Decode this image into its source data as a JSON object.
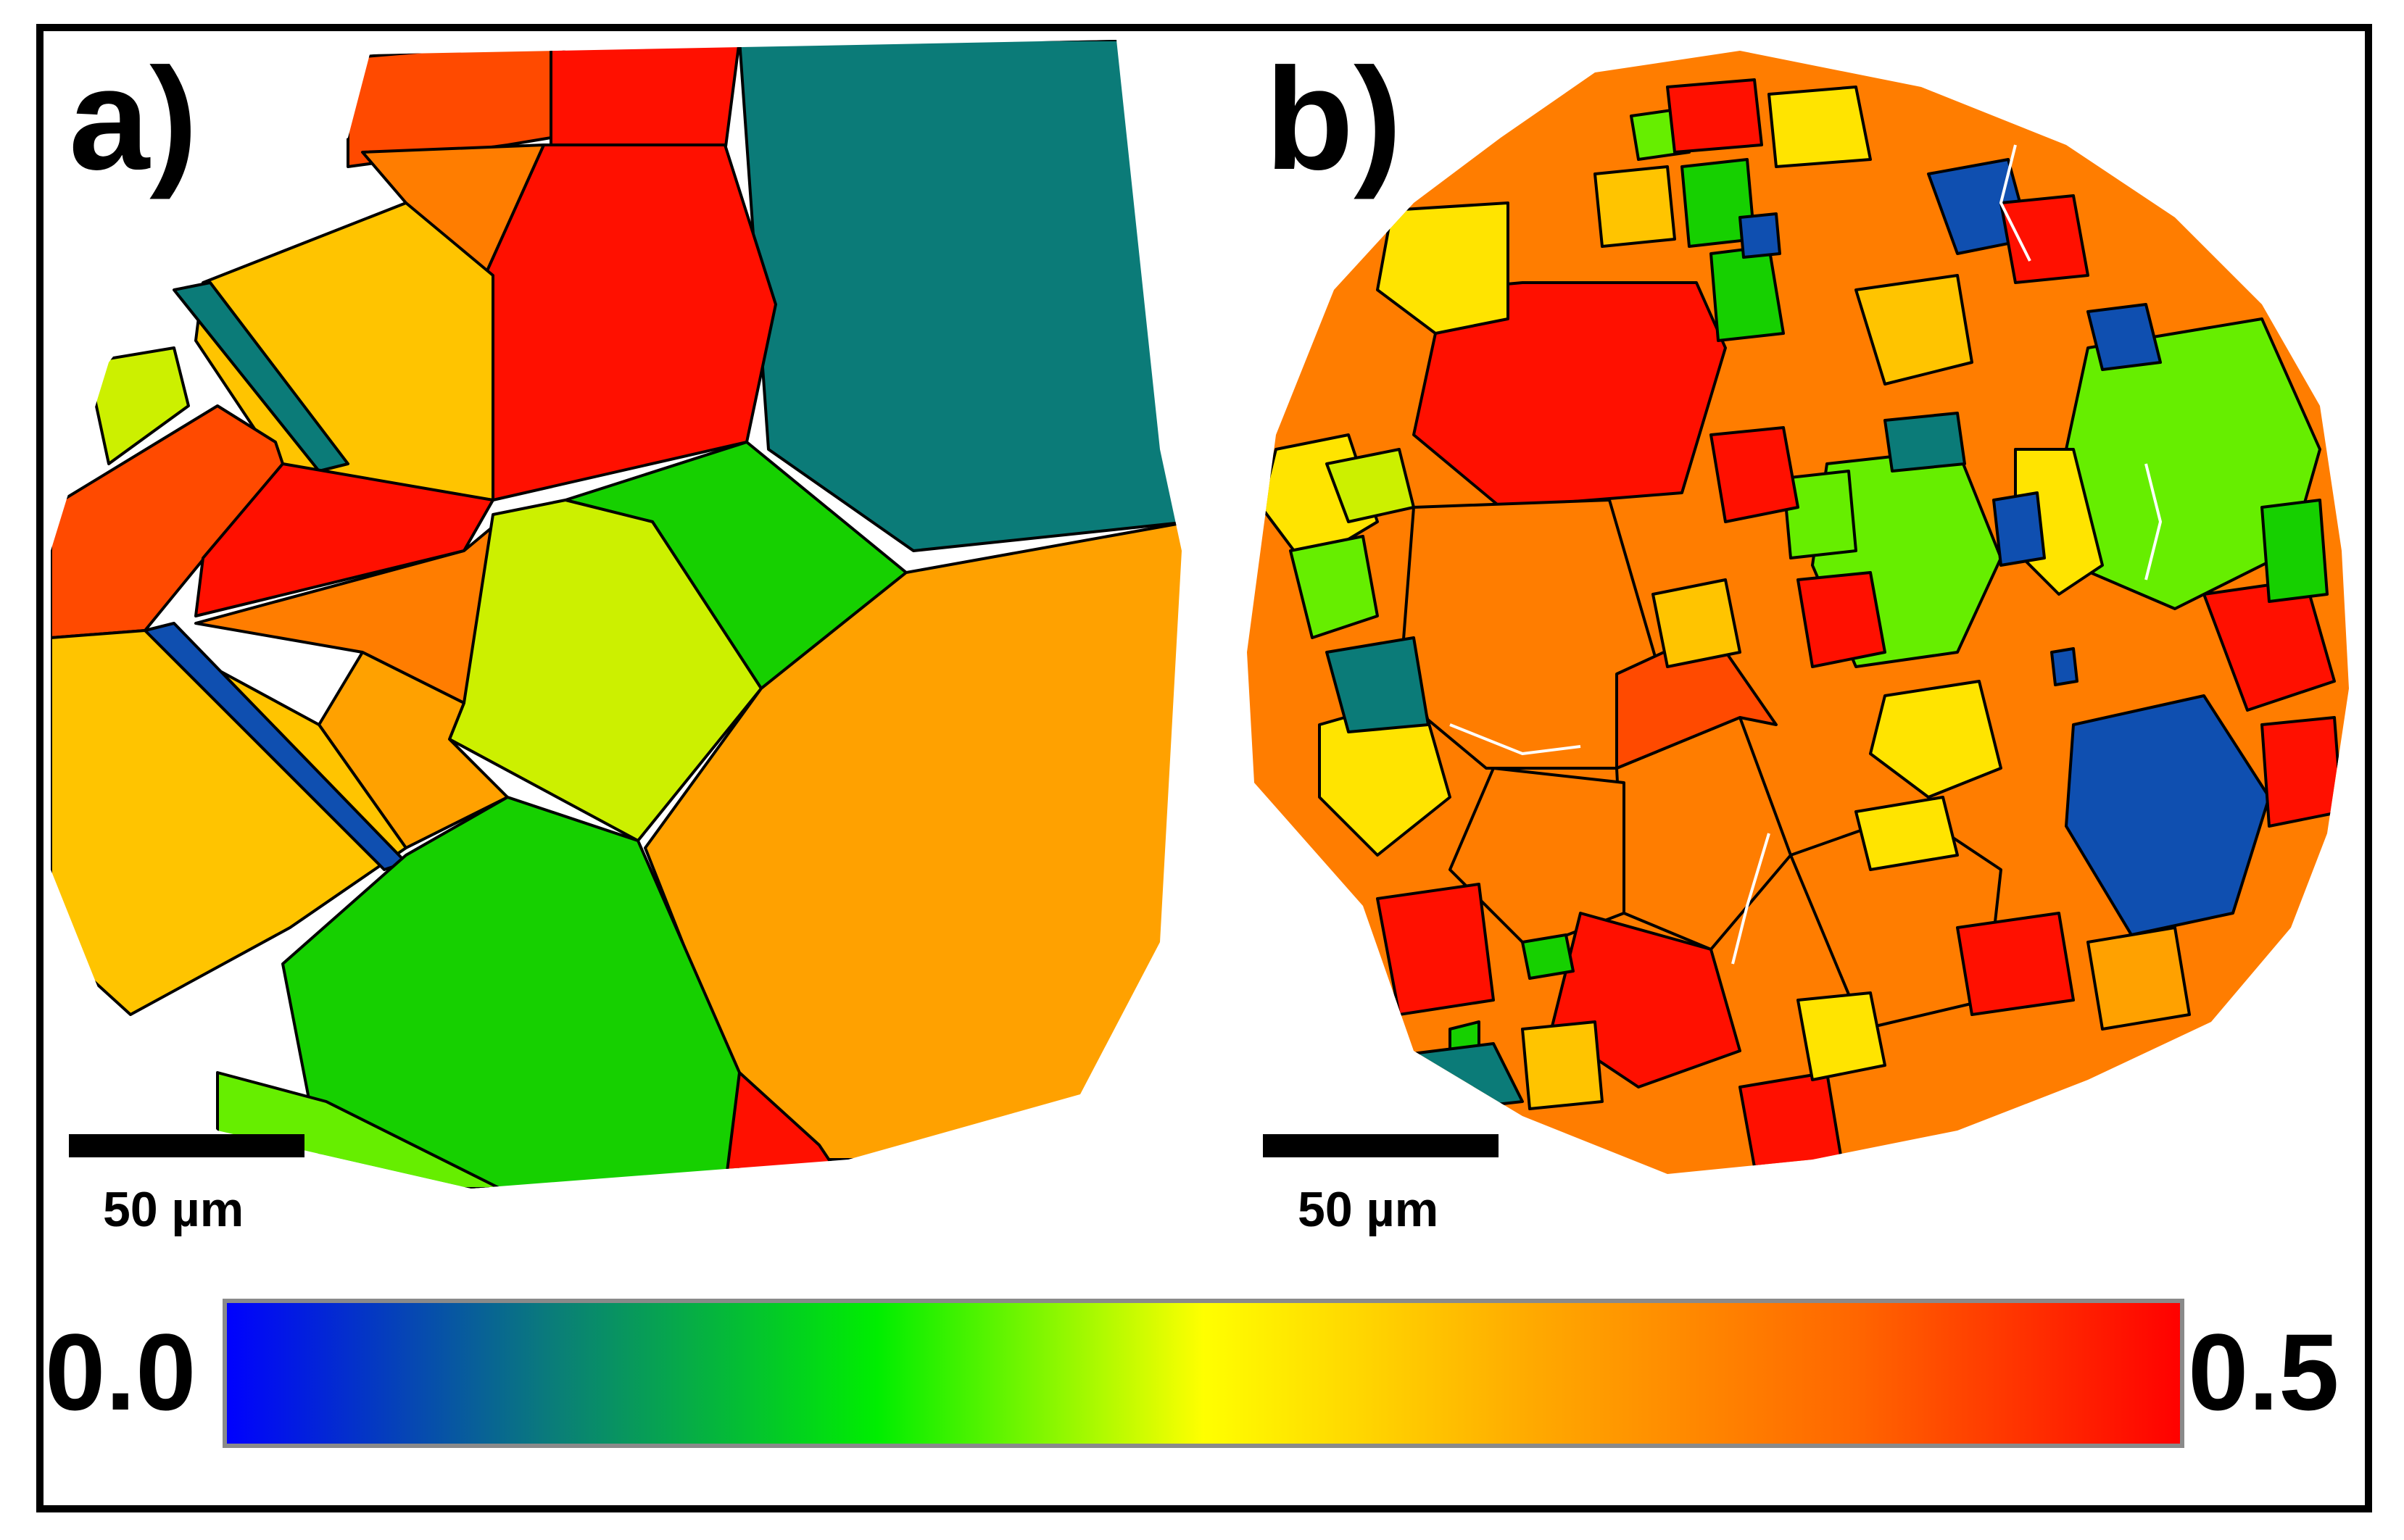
{
  "panels": [
    {
      "label": "a)",
      "scale_bar": "50 µm"
    },
    {
      "label": "b)",
      "scale_bar": "50 µm"
    }
  ],
  "colorbar": {
    "min_label": "0.0",
    "max_label": "0.5",
    "stops": [
      "#0000ff",
      "#0a7c7a",
      "#00ee00",
      "#ffff00",
      "#ffaa00",
      "#ff6600",
      "#ff0000"
    ]
  },
  "palette": {
    "blue": "#0f4fb0",
    "teal": "#0b7b78",
    "green": "#16d000",
    "lightgreen": "#66ee00",
    "yellowgreen": "#ccf000",
    "yellow": "#ffe400",
    "gold": "#ffc400",
    "orange": "#ffa100",
    "darkorange": "#ff7d00",
    "redorange": "#ff4a00",
    "red": "#ff1000",
    "boundary": "#000000",
    "twin_boundary": "#ffffff"
  }
}
